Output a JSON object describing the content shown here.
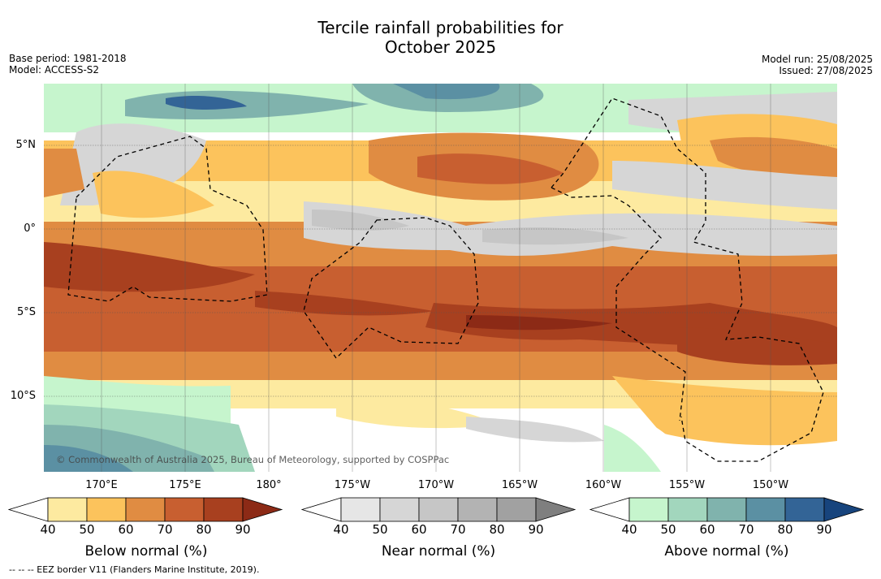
{
  "title_line1": "Tercile rainfall probabilities for",
  "title_line2": "October 2025",
  "base_period": "Base period: 1981-2018",
  "model": "Model: ACCESS-S2",
  "model_run": "Model run: 25/08/2025",
  "issued": "Issued: 27/08/2025",
  "lat_labels": [
    "5°N",
    "0°",
    "5°S",
    "10°S"
  ],
  "lon_labels": [
    "170°E",
    "175°E",
    "180°",
    "175°W",
    "170°W",
    "165°W",
    "160°W",
    "155°W",
    "150°W"
  ],
  "copyright": "© Commonwealth of Australia 2025, Bureau of Meteorology, supported by COSPPac",
  "colorbars": [
    {
      "title": "Below normal (%)",
      "ticks": [
        "40",
        "50",
        "60",
        "70",
        "80",
        "90"
      ],
      "colors": [
        "#fdeaa0",
        "#fcc35c",
        "#e08c42",
        "#c85f30",
        "#a8401f",
        "#8c2a16"
      ]
    },
    {
      "title": "Near normal (%)",
      "ticks": [
        "40",
        "50",
        "60",
        "70",
        "80",
        "90"
      ],
      "colors": [
        "#e6e6e6",
        "#d6d6d6",
        "#c6c6c6",
        "#b3b3b3",
        "#a1a1a1",
        "#7f7f7f"
      ]
    },
    {
      "title": "Above normal (%)",
      "ticks": [
        "40",
        "50",
        "60",
        "70",
        "80",
        "90"
      ],
      "colors": [
        "#c6f5cd",
        "#a2d6bd",
        "#80b3ad",
        "#5b90a3",
        "#336496",
        "#17447d"
      ]
    }
  ],
  "footnote": "--  --  -- EEZ border V11 (Flanders Marine Institute, 2019)."
}
